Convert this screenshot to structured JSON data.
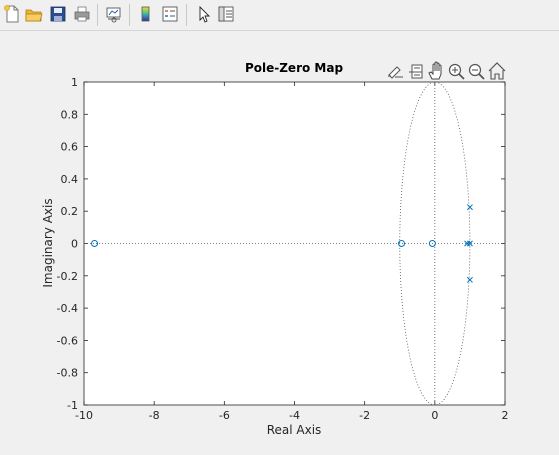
{
  "toolbar": {
    "buttons": [
      {
        "name": "new-figure-button",
        "icon": "new-document-icon"
      },
      {
        "name": "open-file-button",
        "icon": "folder-icon"
      },
      {
        "name": "save-button",
        "icon": "floppy-disk-icon"
      },
      {
        "name": "print-button",
        "icon": "printer-icon"
      },
      {
        "name": "link-plot-button",
        "icon": "link-plot-icon"
      },
      {
        "name": "insert-colorbar-button",
        "icon": "colorbar-icon"
      },
      {
        "name": "insert-legend-button",
        "icon": "legend-icon"
      },
      {
        "name": "edit-plot-button",
        "icon": "pointer-arrow-icon"
      },
      {
        "name": "property-inspector-button",
        "icon": "property-inspector-icon"
      }
    ]
  },
  "axes_toolbar": [
    "brush-icon",
    "data-tips-icon",
    "pan-icon",
    "zoom-in-icon",
    "zoom-out-icon",
    "home-icon"
  ],
  "chart_data": {
    "type": "scatter",
    "title": "Pole-Zero Map",
    "xlabel": "Real Axis",
    "ylabel": "Imaginary Axis",
    "xlim": [
      -10,
      2
    ],
    "ylim": [
      -1,
      1
    ],
    "xticks": [
      -10,
      -8,
      -6,
      -4,
      -2,
      0,
      2
    ],
    "yticks": [
      -1,
      -0.8,
      -0.6,
      -0.4,
      -0.2,
      0,
      0.2,
      0.4,
      0.6,
      0.8,
      1
    ],
    "xtick_labels": [
      "-10",
      "-8",
      "-6",
      "-4",
      "-2",
      "0",
      "2"
    ],
    "ytick_labels": [
      "-1",
      "-0.8",
      "-0.6",
      "-0.4",
      "-0.2",
      "0",
      "0.2",
      "0.4",
      "0.6",
      "0.8",
      "1"
    ],
    "grid": false,
    "unit_circle": true,
    "zeros": [
      {
        "x": -9.7,
        "y": 0
      },
      {
        "x": -0.95,
        "y": 0
      },
      {
        "x": -0.07,
        "y": 0
      }
    ],
    "poles": [
      {
        "x": 0.92,
        "y": 0
      },
      {
        "x": 1.0,
        "y": 0
      },
      {
        "x": 1.0,
        "y": 0.225
      },
      {
        "x": 1.0,
        "y": -0.225
      }
    ],
    "marker_color": "#0072bd"
  }
}
